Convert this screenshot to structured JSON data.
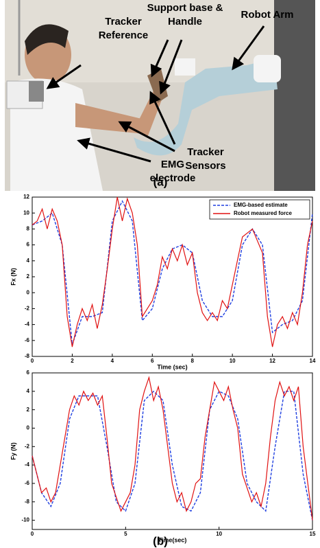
{
  "figure": {
    "photo_labels": [
      {
        "lines": [
          "Tracker",
          "Reference"
        ]
      },
      {
        "lines": [
          "Support base &",
          "Handle"
        ]
      },
      {
        "lines": [
          "Robot Arm"
        ]
      },
      {
        "lines": [
          "Tracker",
          "Sensors"
        ]
      },
      {
        "lines": [
          "EMG",
          "electrode"
        ]
      }
    ],
    "panel_a": "(a)",
    "panel_b": "(b)"
  },
  "chart_data": [
    {
      "type": "line",
      "xlabel": "Time (sec)",
      "ylabel": "Fx (N)",
      "xlim": [
        0,
        14
      ],
      "ylim": [
        -8,
        12
      ],
      "xticks": [
        0,
        2,
        4,
        6,
        8,
        10,
        12,
        14
      ],
      "yticks": [
        -8,
        -6,
        -4,
        -2,
        0,
        2,
        4,
        6,
        8,
        10,
        12
      ],
      "legend": "upper right",
      "series": [
        {
          "name": "EMG-based estimate",
          "color": "#1f3fe0",
          "dashed": true,
          "x": [
            0,
            0.5,
            1,
            1.5,
            2,
            2.5,
            3,
            3.5,
            4,
            4.5,
            5,
            5.5,
            6,
            6.5,
            7,
            7.5,
            8,
            8.5,
            9,
            9.5,
            10,
            10.5,
            11,
            11.5,
            12,
            12.5,
            13,
            13.5,
            14
          ],
          "values": [
            8.5,
            9,
            10,
            6,
            -6.5,
            -3,
            -3,
            -2.5,
            9,
            11.5,
            9,
            -3.5,
            -2,
            3,
            5.5,
            6,
            5,
            -1,
            -3,
            -3,
            -1,
            6,
            8,
            6,
            -5,
            -4,
            -3.5,
            -1,
            10
          ]
        },
        {
          "name": "Robot measured force",
          "color": "#e01010",
          "dashed": false,
          "x": [
            0,
            0.25,
            0.5,
            0.75,
            1,
            1.25,
            1.5,
            1.75,
            2,
            2.25,
            2.5,
            2.75,
            3,
            3.25,
            3.5,
            3.75,
            4,
            4.25,
            4.5,
            4.75,
            5,
            5.25,
            5.5,
            5.75,
            6,
            6.25,
            6.5,
            6.75,
            7,
            7.25,
            7.5,
            7.75,
            8,
            8.25,
            8.5,
            8.75,
            9,
            9.25,
            9.5,
            9.75,
            10,
            10.25,
            10.5,
            10.75,
            11,
            11.25,
            11.5,
            11.75,
            12,
            12.25,
            12.5,
            12.75,
            13,
            13.25,
            13.5,
            13.75,
            14
          ],
          "values": [
            8.5,
            9,
            10.5,
            8,
            10.5,
            9,
            6,
            -3,
            -6.8,
            -4,
            -2,
            -3.5,
            -1.5,
            -4.5,
            -1.5,
            3,
            8,
            12,
            9,
            11.8,
            10,
            6,
            -3,
            -2,
            -1,
            1,
            4.5,
            3,
            5.5,
            4,
            6,
            3.5,
            5,
            0,
            -2.5,
            -3.5,
            -2.5,
            -3.5,
            -1,
            -2,
            1,
            4,
            7,
            7.5,
            8,
            6.5,
            5,
            -3,
            -6.8,
            -4,
            -3,
            -4.5,
            -2.5,
            -4,
            0,
            6,
            9
          ]
        }
      ]
    },
    {
      "type": "line",
      "xlabel": "Time(sec)",
      "ylabel": "Fy (N)",
      "xlim": [
        0,
        15
      ],
      "ylim": [
        -11,
        6
      ],
      "xticks": [
        0,
        5,
        10,
        15
      ],
      "yticks": [
        -10,
        -8,
        -6,
        -4,
        -2,
        0,
        2,
        4,
        6
      ],
      "series": [
        {
          "color": "#1f3fe0",
          "dashed": true,
          "x": [
            0,
            0.5,
            1,
            1.5,
            2,
            2.5,
            3,
            3.5,
            4,
            4.5,
            5,
            5.5,
            6,
            6.5,
            7,
            7.5,
            8,
            8.5,
            9,
            9.5,
            10,
            10.5,
            11,
            11.5,
            12,
            12.5,
            13,
            13.5,
            14,
            14.5,
            15
          ],
          "values": [
            -3,
            -7,
            -8.5,
            -6,
            1,
            3.5,
            3.5,
            3.5,
            -2,
            -8,
            -9,
            -6,
            3,
            4,
            3,
            -4,
            -8.5,
            -9,
            -7,
            2,
            4,
            3.5,
            1,
            -6,
            -8,
            -9,
            -2,
            4,
            4,
            -5,
            -10
          ]
        },
        {
          "color": "#e01010",
          "dashed": false,
          "x": [
            0,
            0.25,
            0.5,
            0.75,
            1,
            1.25,
            1.5,
            1.75,
            2,
            2.25,
            2.5,
            2.75,
            3,
            3.25,
            3.5,
            3.75,
            4,
            4.25,
            4.5,
            4.75,
            5,
            5.25,
            5.5,
            5.75,
            6,
            6.25,
            6.5,
            6.75,
            7,
            7.25,
            7.5,
            7.75,
            8,
            8.25,
            8.5,
            8.75,
            9,
            9.25,
            9.5,
            9.75,
            10,
            10.25,
            10.5,
            10.75,
            11,
            11.25,
            11.5,
            11.75,
            12,
            12.25,
            12.5,
            12.75,
            13,
            13.25,
            13.5,
            13.75,
            14,
            14.25,
            14.5,
            14.75,
            15
          ],
          "values": [
            -3,
            -5,
            -7,
            -6.5,
            -8,
            -7,
            -4,
            -1,
            2,
            3.5,
            2.5,
            4,
            3,
            3.8,
            2.5,
            3.5,
            -1,
            -6,
            -7.5,
            -9,
            -8,
            -7,
            -4,
            2,
            4,
            5.5,
            3,
            4.5,
            2,
            -2,
            -6,
            -8,
            -7,
            -9,
            -8,
            -6,
            -5.5,
            -1,
            2,
            5,
            4,
            3,
            4.5,
            2,
            0,
            -5,
            -6.5,
            -8,
            -7,
            -8.5,
            -6,
            -1,
            3,
            5,
            3.5,
            4.5,
            3,
            4.5,
            -2,
            -6,
            -10
          ]
        }
      ]
    }
  ]
}
